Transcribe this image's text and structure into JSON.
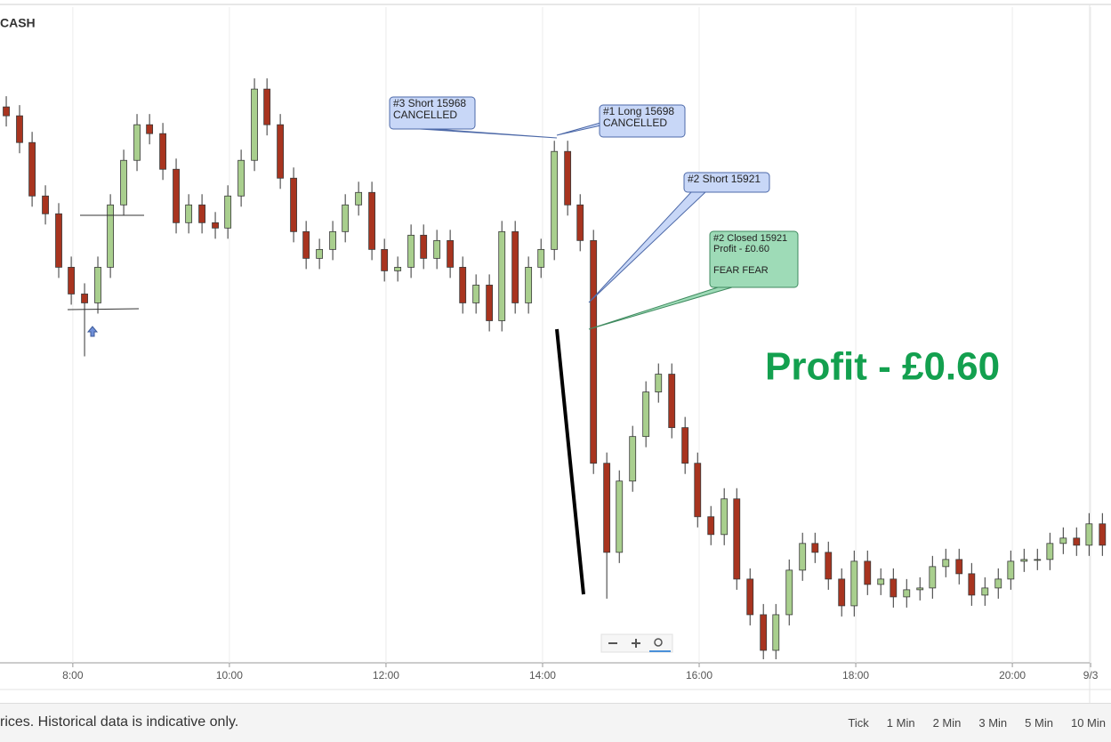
{
  "chart_data": {
    "type": "candlestick",
    "title": "CASH",
    "x": [
      7.15,
      7.32,
      7.48,
      7.65,
      7.82,
      7.98,
      8.15,
      8.32,
      8.48,
      8.65,
      8.82,
      8.98,
      9.15,
      9.32,
      9.48,
      9.65,
      9.82,
      9.98,
      10.15,
      10.32,
      10.48,
      10.65,
      10.82,
      10.98,
      11.15,
      11.32,
      11.48,
      11.65,
      11.82,
      11.98,
      12.15,
      12.32,
      12.48,
      12.65,
      12.82,
      12.98,
      13.15,
      13.32,
      13.48,
      13.65,
      13.82,
      13.98,
      14.15,
      14.32,
      14.48,
      14.65,
      14.82,
      14.98,
      15.15,
      15.32,
      15.48,
      15.65,
      15.82,
      15.98,
      16.15,
      16.32,
      16.48,
      16.65,
      16.82,
      16.98,
      17.15,
      17.32,
      17.48,
      17.65,
      17.82,
      17.98,
      18.15,
      18.32,
      18.48,
      18.65,
      18.82,
      18.98,
      19.15,
      19.32,
      19.48,
      19.65,
      19.82,
      19.98,
      20.15,
      20.32,
      20.48,
      20.65,
      20.82,
      20.98,
      21.15
    ],
    "open": [
      15976,
      15973.5,
      15966,
      15951,
      15946,
      15931,
      15923.5,
      15921,
      15931,
      15948.5,
      15961,
      15971,
      15968.5,
      15958.5,
      15943.5,
      15948.5,
      15943.5,
      15942,
      15951,
      15961,
      15981,
      15971,
      15956,
      15941,
      15933.5,
      15936,
      15941,
      15948.5,
      15952,
      15936,
      15930,
      15931,
      15940,
      15933.5,
      15938.5,
      15931,
      15921,
      15926,
      15916,
      15941,
      15921,
      15931,
      15936,
      15963.5,
      15948.5,
      15938.5,
      15876,
      15851,
      15871,
      15883.5,
      15896,
      15901,
      15886,
      15876,
      15861,
      15856,
      15866,
      15843.5,
      15833.5,
      15823.5,
      15833.5,
      15846,
      15853.5,
      15851,
      15843.5,
      15836,
      15848.5,
      15842,
      15843.5,
      15838.5,
      15840.5,
      15841,
      15847,
      15849,
      15845,
      15839,
      15841,
      15843.5,
      15848.5,
      15849,
      15849,
      15853.5,
      15855,
      15853,
      15859
    ],
    "high": [
      15979,
      15976.5,
      15969,
      15954,
      15949,
      15934,
      15926.5,
      15934,
      15951.5,
      15964,
      15974,
      15974,
      15971.5,
      15961.5,
      15951.5,
      15951.5,
      15946.5,
      15954,
      15964,
      15984,
      15984,
      15974,
      15959,
      15944,
      15939,
      15944,
      15951.5,
      15955,
      15955,
      15939,
      15934,
      15943,
      15943,
      15941.5,
      15941.5,
      15934,
      15929,
      15929,
      15944,
      15944,
      15934,
      15939,
      15966.5,
      15966.5,
      15951.5,
      15941.5,
      15879,
      15874,
      15886.5,
      15899,
      15904,
      15904,
      15889,
      15879,
      15864,
      15869,
      15869,
      15846.5,
      15836.5,
      15836.5,
      15849,
      15856.5,
      15856.5,
      15854,
      15846.5,
      15851.5,
      15851.5,
      15846.5,
      15846.5,
      15843.5,
      15844,
      15850,
      15852,
      15852,
      15848,
      15844,
      15846.5,
      15851.5,
      15852,
      15852,
      15856.5,
      15858,
      15858,
      15862,
      15862
    ],
    "low": [
      15970.5,
      15963,
      15948,
      15943,
      15928,
      15920.5,
      15906,
      15918,
      15928,
      15945.5,
      15958,
      15965.5,
      15955.5,
      15940.5,
      15940.5,
      15940.5,
      15939,
      15939,
      15948,
      15958,
      15968,
      15953,
      15938,
      15930.5,
      15930.5,
      15933,
      15938,
      15945.5,
      15933,
      15927,
      15927,
      15928,
      15930.5,
      15930.5,
      15928,
      15918,
      15918,
      15913,
      15913,
      15918,
      15918,
      15928,
      15933,
      15945.5,
      15935.5,
      15873,
      15838,
      15848,
      15868,
      15880.5,
      15893,
      15883,
      15873,
      15858,
      15853,
      15853,
      15840.5,
      15830.5,
      15821,
      15821,
      15830.5,
      15843,
      15848,
      15840.5,
      15833,
      15833,
      15839,
      15839,
      15835.5,
      15835.5,
      15837.5,
      15838,
      15844,
      15842,
      15836,
      15836,
      15838,
      15840.5,
      15845.5,
      15846,
      15846,
      15850.5,
      15850,
      15850,
      15850
    ],
    "close": [
      15973.5,
      15966,
      15951,
      15946,
      15931,
      15923.5,
      15921,
      15931,
      15948.5,
      15961,
      15971,
      15968.5,
      15958.5,
      15943.5,
      15948.5,
      15943.5,
      15942,
      15951,
      15961,
      15981,
      15971,
      15956,
      15941,
      15933.5,
      15936,
      15941,
      15948.5,
      15952,
      15936,
      15930,
      15931,
      15940,
      15933.5,
      15938.5,
      15931,
      15921,
      15926,
      15916,
      15941,
      15921,
      15931,
      15936,
      15963.5,
      15948.5,
      15938.5,
      15876,
      15851,
      15871,
      15883.5,
      15896,
      15901,
      15886,
      15876,
      15861,
      15856,
      15866,
      15843.5,
      15833.5,
      15823.5,
      15833.5,
      15846,
      15853.5,
      15851,
      15843.5,
      15836,
      15848.5,
      15842,
      15843.5,
      15838.5,
      15840.5,
      15841,
      15847,
      15849,
      15845,
      15839,
      15841,
      15843.5,
      15848.5,
      15849,
      15849,
      15853.5,
      15855,
      15853,
      15859,
      15853
    ],
    "xlim": [
      7.07,
      21.26
    ],
    "ylim": [
      15820,
      16004
    ],
    "xticks": [
      {
        "value": 8,
        "label": "8:00"
      },
      {
        "value": 10,
        "label": "10:00"
      },
      {
        "value": 12,
        "label": "12:00"
      },
      {
        "value": 14,
        "label": "14:00"
      },
      {
        "value": 16,
        "label": "16:00"
      },
      {
        "value": 18,
        "label": "18:00"
      },
      {
        "value": 20,
        "label": "20:00"
      },
      {
        "value": 21,
        "label": "9/3"
      }
    ],
    "grid": true,
    "up_color": "#a9cf8e",
    "down_color": "#a8341f",
    "annotations": [
      {
        "lines": [
          "#3 Short 15968",
          "CANCELLED"
        ]
      },
      {
        "lines": [
          "#1 Long 15698",
          "CANCELLED"
        ]
      },
      {
        "lines": [
          "#2 Short 15921"
        ]
      },
      {
        "lines": [
          "#2 Closed 15921",
          "Profit - £0.60",
          "",
          "FEAR FEAR"
        ]
      }
    ],
    "profit_text": "Profit - £0.60"
  },
  "footer": {
    "disclaimer": "rices. Historical data is indicative only.",
    "intervals": [
      "Tick",
      "1 Min",
      "2 Min",
      "3 Min",
      "5 Min",
      "10 Min"
    ]
  }
}
